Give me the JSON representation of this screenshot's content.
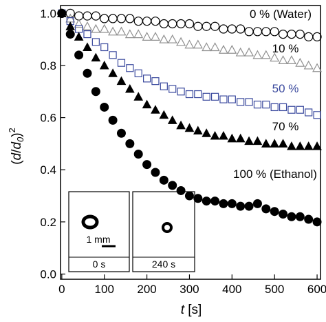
{
  "chart_data": {
    "type": "scatter",
    "xlabel": [
      "t",
      "[s]"
    ],
    "ylabel": [
      "(",
      "d",
      "/",
      "d",
      "0",
      ")",
      "2"
    ],
    "x": [
      0,
      20,
      40,
      60,
      80,
      100,
      120,
      140,
      160,
      180,
      200,
      220,
      240,
      260,
      280,
      300,
      320,
      340,
      360,
      380,
      400,
      420,
      440,
      460,
      480,
      500,
      520,
      540,
      560,
      580,
      600
    ],
    "series": [
      {
        "name": "0 % (Water)",
        "color": "#000000",
        "marker": "open-circle",
        "values": [
          1.0,
          1.0,
          0.99,
          0.99,
          0.99,
          0.98,
          0.98,
          0.98,
          0.98,
          0.97,
          0.97,
          0.97,
          0.96,
          0.96,
          0.96,
          0.96,
          0.95,
          0.95,
          0.95,
          0.94,
          0.94,
          0.94,
          0.93,
          0.93,
          0.93,
          0.93,
          0.92,
          0.92,
          0.92,
          0.91,
          0.91
        ]
      },
      {
        "name": "10 %",
        "color": "#909090",
        "marker": "open-triangle",
        "values": [
          1.0,
          0.98,
          0.96,
          0.95,
          0.94,
          0.94,
          0.93,
          0.93,
          0.92,
          0.92,
          0.91,
          0.91,
          0.9,
          0.9,
          0.89,
          0.88,
          0.88,
          0.87,
          0.87,
          0.86,
          0.86,
          0.85,
          0.85,
          0.84,
          0.84,
          0.83,
          0.82,
          0.82,
          0.81,
          0.8,
          0.79
        ]
      },
      {
        "name": "50 %",
        "color": "#3b4a9e",
        "marker": "open-square",
        "values": [
          1.0,
          0.97,
          0.94,
          0.92,
          0.89,
          0.87,
          0.84,
          0.81,
          0.79,
          0.77,
          0.75,
          0.74,
          0.72,
          0.71,
          0.7,
          0.69,
          0.69,
          0.68,
          0.68,
          0.67,
          0.67,
          0.66,
          0.66,
          0.65,
          0.65,
          0.64,
          0.64,
          0.63,
          0.63,
          0.62,
          0.61
        ]
      },
      {
        "name": "70 %",
        "color": "#000000",
        "marker": "filled-triangle",
        "values": [
          1.0,
          0.95,
          0.91,
          0.87,
          0.83,
          0.8,
          0.77,
          0.74,
          0.71,
          0.68,
          0.65,
          0.63,
          0.61,
          0.59,
          0.57,
          0.56,
          0.55,
          0.54,
          0.53,
          0.53,
          0.52,
          0.52,
          0.51,
          0.51,
          0.5,
          0.5,
          0.5,
          0.49,
          0.49,
          0.49,
          0.49
        ]
      },
      {
        "name": "100 % (Ethanol)",
        "color": "#000000",
        "marker": "filled-circle",
        "values": [
          1.0,
          0.92,
          0.84,
          0.77,
          0.7,
          0.64,
          0.59,
          0.54,
          0.5,
          0.46,
          0.42,
          0.39,
          0.36,
          0.34,
          0.32,
          0.3,
          0.29,
          0.28,
          0.28,
          0.27,
          0.27,
          0.26,
          0.26,
          0.27,
          0.25,
          0.24,
          0.23,
          0.22,
          0.22,
          0.21,
          0.2
        ]
      }
    ],
    "xlim": [
      -3,
      608
    ],
    "xticks": [
      0,
      100,
      200,
      300,
      400,
      500,
      600
    ],
    "ylim": [
      -0.02,
      1.03
    ],
    "yticks": [
      {
        "value": 0,
        "label": "0.0"
      },
      0.2,
      0.4,
      0.6,
      0.8,
      {
        "value": 1,
        "label": "1.0"
      }
    ],
    "grid": false,
    "insets": {
      "scale_bar": "1 mm",
      "panels": [
        "0 s",
        "240 s"
      ]
    }
  }
}
